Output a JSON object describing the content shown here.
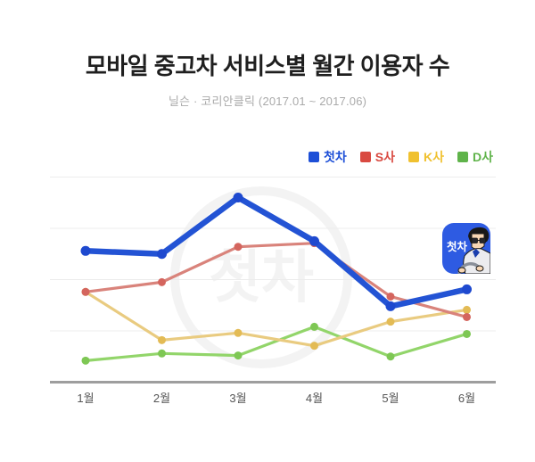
{
  "watermark": {
    "text": "첫차",
    "color": "#f3f3f3"
  },
  "logo": {
    "badge_text": "첫차",
    "background": "#2e5be2"
  },
  "axis": {
    "line_color": "#9e9e9e",
    "gridline_color": "#ececec",
    "label_color": "#555555"
  },
  "chart_data": {
    "type": "line",
    "title": "모바일 중고차 서비스별 월간 이용자 수",
    "subtitle": "닐슨 · 코리안클릭 (2017.01 ~ 2017.06)",
    "categories": [
      "1월",
      "2월",
      "3월",
      "4월",
      "5월",
      "6월"
    ],
    "xlabel": "",
    "ylabel": "",
    "ylim": [
      0,
      42
    ],
    "gridlines": [
      10,
      20,
      30,
      40
    ],
    "y_axis_labels_shown": false,
    "legend_position": "top-right",
    "series": [
      {
        "id": "cheotcha",
        "name": "첫차",
        "color": "#1d4fd7",
        "line_color": "#2353d4",
        "point_color": "#1e49cf",
        "line_width": 6.5,
        "point_radius": 5.5,
        "values": [
          25.6,
          25.0,
          36.0,
          27.5,
          14.8,
          18.1
        ]
      },
      {
        "id": "s-sa",
        "name": "S사",
        "color": "#d94a41",
        "line_color": "#d9837b",
        "point_color": "#d4655e",
        "line_width": 3.2,
        "point_radius": 4.5,
        "values": [
          17.6,
          19.5,
          26.4,
          27.1,
          16.7,
          12.7
        ]
      },
      {
        "id": "k-sa",
        "name": "K사",
        "color": "#f0c12f",
        "line_color": "#e9cb80",
        "point_color": "#e3bb55",
        "line_width": 3.2,
        "point_radius": 4.5,
        "values": [
          17.6,
          8.2,
          9.6,
          7.1,
          11.8,
          14.1
        ]
      },
      {
        "id": "d-sa",
        "name": "D사",
        "color": "#5fb34a",
        "line_color": "#92d56a",
        "point_color": "#7ec754",
        "line_width": 3.2,
        "point_radius": 4.5,
        "values": [
          4.2,
          5.6,
          5.2,
          10.8,
          5.0,
          9.4
        ]
      }
    ]
  }
}
